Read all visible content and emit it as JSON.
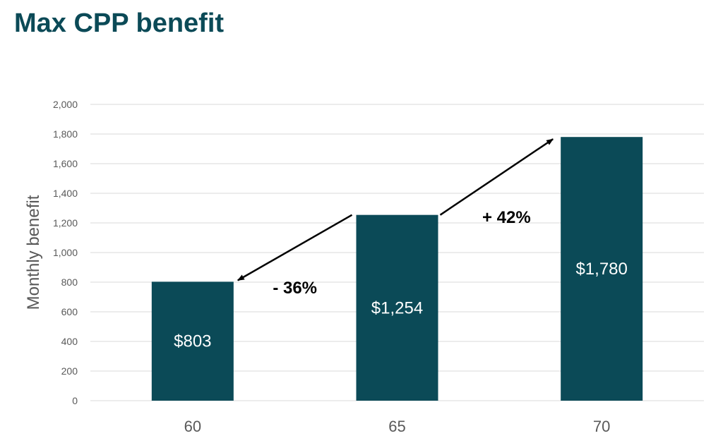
{
  "title": "Max CPP benefit",
  "chart_data": {
    "type": "bar",
    "categories": [
      "60",
      "65",
      "70"
    ],
    "values": [
      803,
      1254,
      1780
    ],
    "data_labels": [
      "$803",
      "$1,254",
      "$1,780"
    ],
    "title": "Max CPP benefit",
    "xlabel": "",
    "ylabel": "Monthly benefit",
    "ylim": [
      0,
      2000
    ],
    "yticks": [
      0,
      200,
      400,
      600,
      800,
      1000,
      1200,
      1400,
      1600,
      1800,
      2000
    ],
    "ytick_labels": [
      "0",
      "200",
      "400",
      "600",
      "800",
      "1,000",
      "1,200",
      "1,400",
      "1,600",
      "1,800",
      "2,000"
    ],
    "grid": true,
    "legend": "none",
    "annotations": [
      {
        "text": "- 36%",
        "from_category": "65",
        "to_category": "60"
      },
      {
        "text": "+ 42%",
        "from_category": "65",
        "to_category": "70"
      }
    ]
  },
  "colors": {
    "title": "#0b4a57",
    "bar": "#0b4a57",
    "grid": "#d9d9d9",
    "axis_text": "#595959",
    "bar_label": "#ffffff",
    "annotation": "#000000"
  }
}
